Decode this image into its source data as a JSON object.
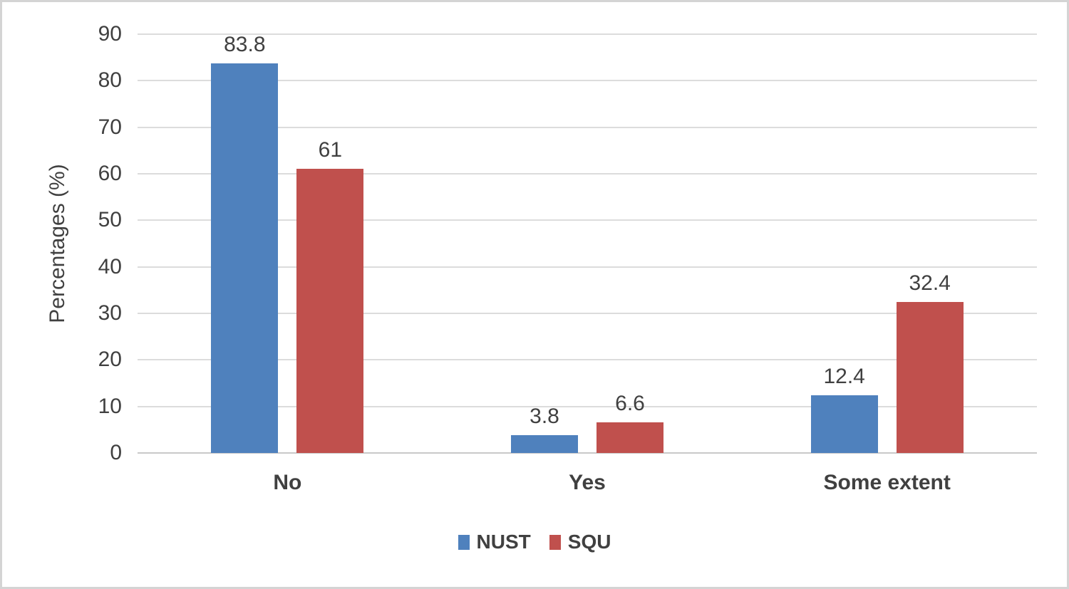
{
  "chart_data": {
    "type": "bar",
    "title": "",
    "categories": [
      "No",
      "Yes",
      "Some extent"
    ],
    "series": [
      {
        "name": "NUST",
        "color": "#4F81BD",
        "values": [
          83.8,
          3.8,
          12.4
        ],
        "labels": [
          "83.8",
          "3.8",
          "12.4"
        ]
      },
      {
        "name": "SQU",
        "color": "#C0504D",
        "values": [
          61,
          6.6,
          32.4
        ],
        "labels": [
          "61",
          "6.6",
          "32.4"
        ]
      }
    ],
    "xlabel": "",
    "ylabel": "Percentages (%)",
    "ylim": [
      0,
      90
    ],
    "ytick_step": 10,
    "grid": true,
    "legend_position": "bottom"
  },
  "colors": {
    "gridline": "#dcdcdc",
    "axis_line": "#c9c9c9",
    "text": "#404040",
    "frame_border": "#d4d4d4",
    "background": "#ffffff"
  }
}
